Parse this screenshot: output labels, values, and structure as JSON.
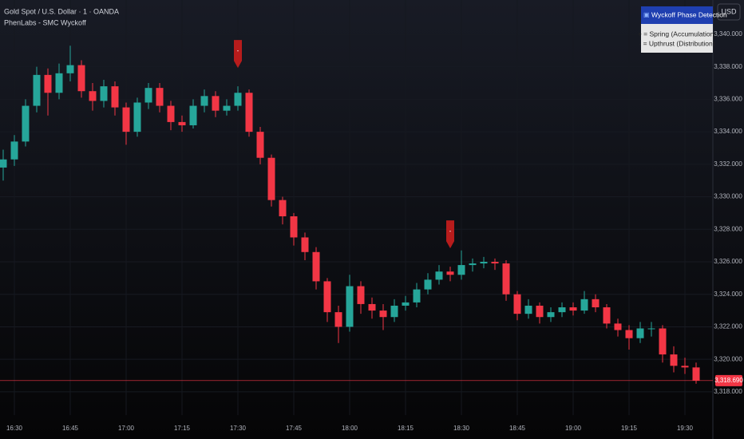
{
  "header": {
    "symbol": "Gold Spot / U.S. Dollar · 1 · OANDA",
    "indicator": "PhenLabs - SMC Wyckoff",
    "currency": "USD"
  },
  "legend": {
    "title": "Wyckoff Phase Detection",
    "lines": [
      "+ = Spring (Accumulation)",
      "- = Upthrust (Distribution)"
    ]
  },
  "chart_data": {
    "type": "candlestick",
    "categories": [
      null,
      "16:30",
      null,
      null,
      null,
      null,
      "16:45",
      null,
      null,
      null,
      null,
      "17:00",
      null,
      null,
      null,
      null,
      "17:15",
      null,
      null,
      null,
      null,
      "17:30",
      null,
      null,
      null,
      null,
      "17:45",
      null,
      null,
      null,
      null,
      "18:00",
      null,
      null,
      null,
      null,
      "18:15",
      null,
      null,
      null,
      null,
      "18:30",
      null,
      null,
      null,
      null,
      "18:45",
      null,
      null,
      null,
      null,
      "19:00",
      null,
      null,
      null,
      null,
      "19:15",
      null,
      null,
      null,
      null,
      "19:30",
      null
    ],
    "open": [
      3331.8,
      3332.3,
      3333.4,
      3335.6,
      3337.5,
      3336.4,
      3337.6,
      3338.1,
      3336.5,
      3335.9,
      3336.8,
      3335.5,
      3334.0,
      3335.8,
      3336.7,
      3335.6,
      3334.6,
      3334.4,
      3335.6,
      3336.2,
      3335.3,
      3335.6,
      3336.4,
      3334.0,
      3332.4,
      3329.8,
      3328.8,
      3327.5,
      3326.6,
      3324.8,
      3322.9,
      3322.0,
      3324.5,
      3323.4,
      3323.0,
      3322.6,
      3323.3,
      3323.5,
      3324.3,
      3324.9,
      3325.4,
      3325.2,
      3325.8,
      3325.9,
      3326.0,
      3325.9,
      3324.0,
      3322.8,
      3323.3,
      3322.6,
      3322.9,
      3323.2,
      3323.0,
      3323.7,
      3323.2,
      3322.2,
      3321.8,
      3321.3,
      3321.9,
      3321.9,
      3320.3,
      3319.6,
      3319.5
    ],
    "high": [
      3332.9,
      3333.8,
      3336.0,
      3338.0,
      3337.9,
      3338.2,
      3339.3,
      3338.4,
      3337.0,
      3337.2,
      3337.1,
      3335.8,
      3336.1,
      3337.0,
      3337.0,
      3335.9,
      3335.0,
      3336.0,
      3336.6,
      3336.5,
      3336.0,
      3336.8,
      3336.6,
      3334.3,
      3332.6,
      3330.0,
      3329.0,
      3327.8,
      3326.9,
      3325.0,
      3323.3,
      3325.2,
      3324.8,
      3323.8,
      3323.4,
      3323.7,
      3323.9,
      3324.7,
      3325.3,
      3325.8,
      3325.7,
      3326.7,
      3326.2,
      3326.3,
      3326.2,
      3326.1,
      3324.2,
      3323.7,
      3323.5,
      3323.2,
      3323.5,
      3323.5,
      3324.2,
      3324.0,
      3323.4,
      3322.5,
      3322.1,
      3322.3,
      3322.3,
      3322.1,
      3320.8,
      3320.1,
      3319.8
    ],
    "low": [
      3331.0,
      3331.9,
      3333.1,
      3335.2,
      3335.0,
      3336.0,
      3337.1,
      3336.1,
      3335.3,
      3335.5,
      3335.0,
      3333.2,
      3333.7,
      3335.4,
      3335.2,
      3334.1,
      3334.0,
      3334.2,
      3335.2,
      3334.9,
      3335.0,
      3335.3,
      3333.7,
      3332.0,
      3329.4,
      3328.3,
      3327.0,
      3326.1,
      3324.3,
      3322.3,
      3321.0,
      3321.7,
      3322.8,
      3322.5,
      3321.8,
      3322.3,
      3323.0,
      3323.2,
      3324.0,
      3324.6,
      3324.8,
      3324.9,
      3325.4,
      3325.6,
      3325.5,
      3323.6,
      3322.4,
      3322.5,
      3322.2,
      3322.3,
      3322.6,
      3322.7,
      3322.8,
      3322.9,
      3321.9,
      3321.4,
      3320.6,
      3321.0,
      3321.4,
      3319.8,
      3319.2,
      3319.1,
      3318.5
    ],
    "close": [
      3332.3,
      3333.4,
      3335.6,
      3337.5,
      3336.4,
      3337.6,
      3338.1,
      3336.5,
      3335.9,
      3336.8,
      3335.5,
      3334.0,
      3335.8,
      3336.7,
      3335.6,
      3334.6,
      3334.4,
      3335.6,
      3336.2,
      3335.3,
      3335.6,
      3336.4,
      3334.0,
      3332.4,
      3329.8,
      3328.8,
      3327.5,
      3326.6,
      3324.8,
      3322.9,
      3322.0,
      3324.5,
      3323.4,
      3323.0,
      3322.6,
      3323.3,
      3323.5,
      3324.3,
      3324.9,
      3325.4,
      3325.2,
      3325.8,
      3325.9,
      3326.0,
      3325.9,
      3324.0,
      3322.8,
      3323.3,
      3322.6,
      3322.9,
      3323.2,
      3323.0,
      3323.7,
      3323.2,
      3322.2,
      3321.8,
      3321.3,
      3321.9,
      3321.9,
      3320.3,
      3319.6,
      3319.5,
      3318.69
    ],
    "markers": [
      null,
      null,
      null,
      null,
      null,
      null,
      null,
      null,
      null,
      null,
      null,
      null,
      null,
      null,
      null,
      null,
      null,
      null,
      null,
      null,
      null,
      "-",
      null,
      null,
      null,
      null,
      null,
      null,
      null,
      null,
      null,
      null,
      null,
      null,
      null,
      null,
      null,
      null,
      null,
      null,
      "-",
      null,
      null,
      null,
      null,
      null,
      null,
      null,
      null,
      null,
      null,
      null,
      null,
      null,
      null,
      null,
      null,
      null,
      null,
      null,
      null,
      null,
      null
    ],
    "up_color": "#26a69a",
    "down_color": "#f23645",
    "marker_color": "#b71c1c",
    "last_price": {
      "value": 3318.69,
      "label": "3,318.690"
    },
    "ylim": [
      3316.57,
      3342.11
    ],
    "yticks": [
      {
        "value": 3318,
        "label": "3,318.000"
      },
      {
        "value": 3320,
        "label": "3,320.000"
      },
      {
        "value": 3322,
        "label": "3,322.000"
      },
      {
        "value": 3324,
        "label": "3,324.000"
      },
      {
        "value": 3326,
        "label": "3,326.000"
      },
      {
        "value": 3328,
        "label": "3,328.000"
      },
      {
        "value": 3330,
        "label": "3,330.000"
      },
      {
        "value": 3332,
        "label": "3,332.000"
      },
      {
        "value": 3334,
        "label": "3,334.000"
      },
      {
        "value": 3336,
        "label": "3,336.000"
      },
      {
        "value": 3338,
        "label": "3,338.000"
      },
      {
        "value": 3340,
        "label": "3,340.000"
      }
    ],
    "grid": true
  }
}
